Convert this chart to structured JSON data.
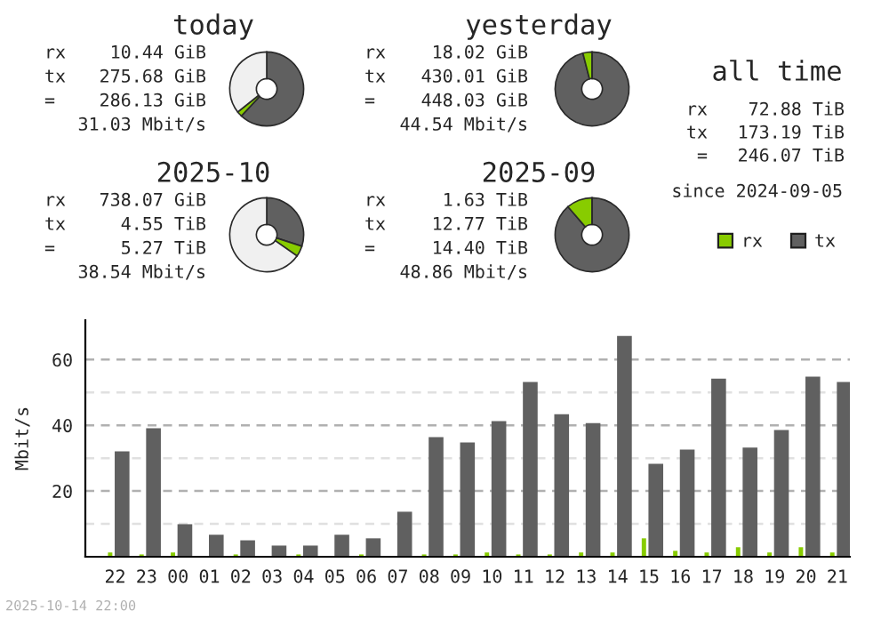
{
  "chart_data": [
    {
      "type": "donut",
      "title": "today",
      "categories": [
        null,
        null,
        null
      ],
      "values": [
        62,
        2.3,
        35.7
      ],
      "colors": [
        "#606060",
        "#88cc00",
        "#f0f0f0"
      ],
      "annotations": [
        "rx",
        "10.44 GiB",
        "tx",
        "275.68 GiB",
        "=",
        "286.13 GiB",
        "31.03 Mbit/s"
      ]
    },
    {
      "type": "donut",
      "title": "yesterday",
      "categories": [
        null,
        null,
        null
      ],
      "values": [
        96,
        4,
        0
      ],
      "colors": [
        "#606060",
        "#88cc00",
        "#f0f0f0"
      ],
      "annotations": [
        "rx",
        "18.02 GiB",
        "tx",
        "430.01 GiB",
        "=",
        "448.03 GiB",
        "44.54 Mbit/s"
      ]
    },
    {
      "type": "donut",
      "title": "2025-10",
      "categories": [
        null,
        null,
        null
      ],
      "values": [
        30,
        4.7,
        65.3
      ],
      "colors": [
        "#606060",
        "#88cc00",
        "#f0f0f0"
      ],
      "annotations": [
        "rx",
        "738.07 GiB",
        "tx",
        "4.55 TiB",
        "=",
        "5.27 TiB",
        "38.54 Mbit/s"
      ]
    },
    {
      "type": "donut",
      "title": "2025-09",
      "categories": [
        null,
        null,
        null
      ],
      "values": [
        88.7,
        11.3,
        0
      ],
      "colors": [
        "#606060",
        "#88cc00",
        "#f0f0f0"
      ],
      "annotations": [
        "rx",
        "1.63 TiB",
        "tx",
        "12.77 TiB",
        "=",
        "14.40 TiB",
        "48.86 Mbit/s"
      ]
    },
    {
      "type": "other",
      "title": "all time",
      "annotations": [
        "rx",
        "72.88 TiB",
        "tx",
        "173.19 TiB",
        "=",
        "246.07 TiB",
        "since 2024-09-05"
      ]
    },
    {
      "type": "bar",
      "ylabel": "Mbit/s",
      "legend": "top right",
      "grid": "y",
      "categories": [
        "22",
        "23",
        "00",
        "01",
        "02",
        "03",
        "04",
        "05",
        "06",
        "07",
        "08",
        "09",
        "10",
        "11",
        "12",
        "13",
        "14",
        "15",
        "16",
        "17",
        "18",
        "19",
        "20",
        "21"
      ],
      "series": [
        {
          "name": "rx",
          "color": "#88cc00",
          "values": [
            1.3,
            0.7,
            1.3,
            0,
            0.7,
            0,
            0.7,
            0,
            0.7,
            0,
            0.7,
            0.7,
            1.3,
            0.7,
            0.7,
            1.3,
            1.3,
            5.6,
            1.8,
            1.3,
            2.9,
            1.3,
            2.9,
            1.3
          ]
        },
        {
          "name": "tx",
          "color": "#606060",
          "values": [
            32.1,
            39.1,
            9.9,
            6.7,
            5.0,
            3.4,
            3.4,
            6.7,
            5.6,
            13.7,
            36.4,
            34.8,
            41.3,
            53.2,
            43.4,
            40.7,
            67.2,
            28.3,
            32.6,
            54.2,
            33.2,
            38.6,
            54.8,
            53.2
          ]
        }
      ],
      "ylim": [
        0,
        72
      ],
      "yticks": [
        {
          "value": 10,
          "label": null
        },
        20,
        {
          "value": 30,
          "label": null
        },
        40,
        {
          "value": 50,
          "label": null
        },
        60
      ],
      "annotations": [
        "2025-10-14 22:00"
      ]
    }
  ]
}
